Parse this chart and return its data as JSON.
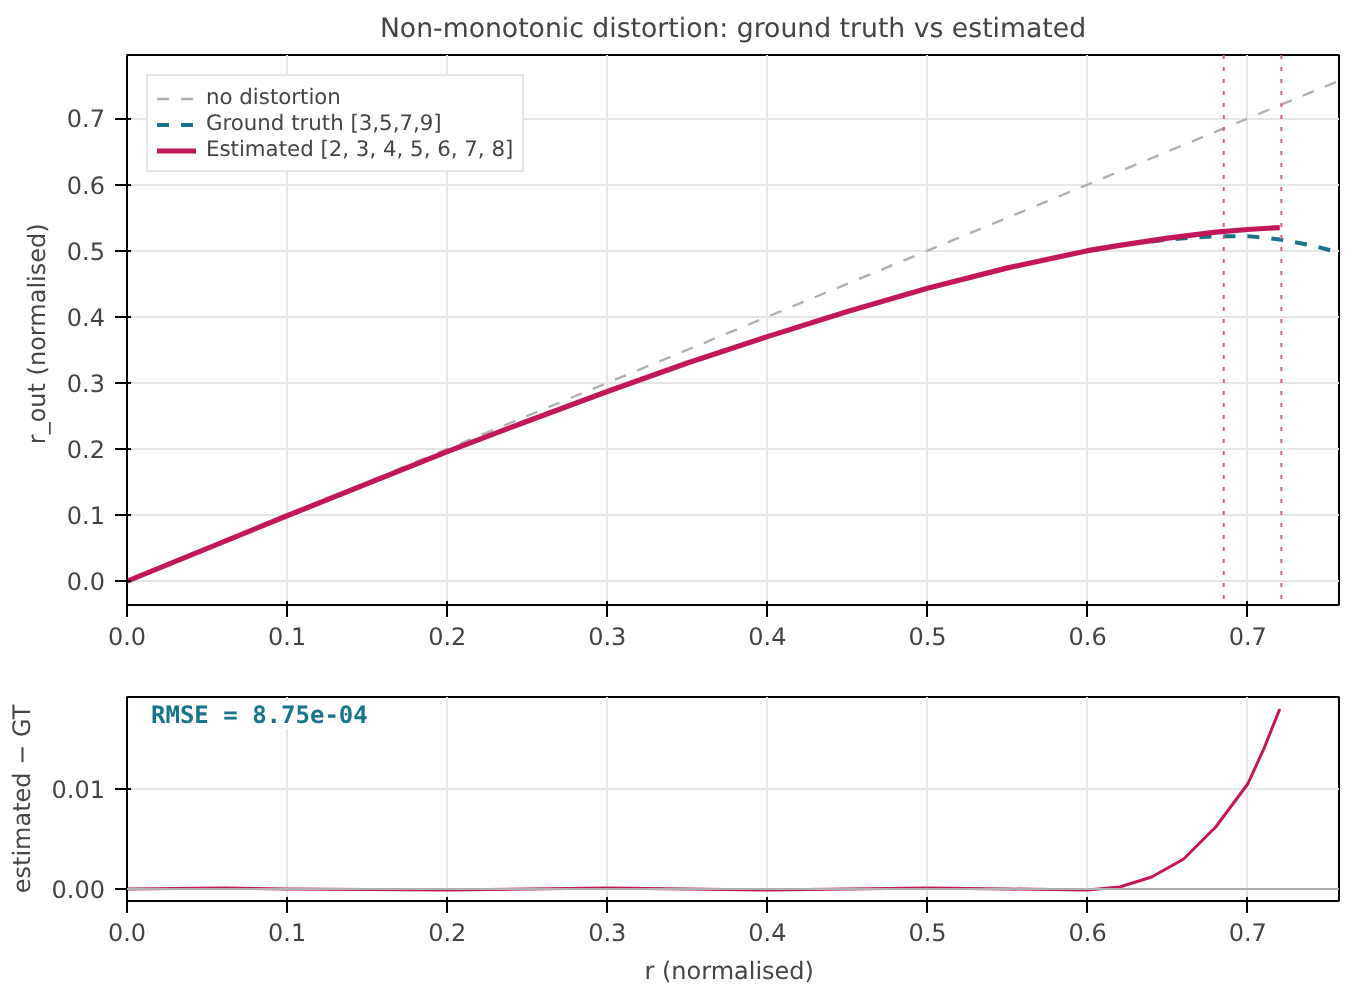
{
  "chart_data": [
    {
      "type": "line",
      "title": "Non-monotonic distortion: ground truth vs estimated",
      "ylabel": "r_out  (normalised)",
      "xlim": [
        0,
        0.757
      ],
      "ylim": [
        -0.036,
        0.796
      ],
      "xticks": [
        {
          "value": 0,
          "label": "0.0"
        },
        0.1,
        0.2,
        0.3,
        0.4,
        0.5,
        0.6,
        0.7
      ],
      "yticks": [
        {
          "value": 0,
          "label": "0.0"
        },
        0.1,
        0.2,
        0.3,
        0.4,
        0.5,
        0.6,
        0.7
      ],
      "grid": true,
      "legend": "top left",
      "series": [
        {
          "name": "no distortion",
          "color": "#b0b0b0",
          "line_style": "dashed",
          "x": [
            0,
            0.757
          ],
          "values": [
            0,
            0.757
          ]
        },
        {
          "name": "Ground truth [3,5,7,9]",
          "color": "#17748a",
          "line_style": "dashed",
          "x": [
            0.64,
            0.65,
            0.68,
            0.7,
            0.72,
            0.74,
            0.757
          ],
          "values": [
            0.514,
            0.517,
            0.522,
            0.522,
            0.517,
            0.508,
            0.497
          ]
        },
        {
          "name": "Estimated [2, 3, 4, 5, 6, 7, 8]",
          "color": "#c2185b",
          "line_style": "solid",
          "x": [
            0,
            0.1,
            0.2,
            0.25,
            0.3,
            0.35,
            0.4,
            0.45,
            0.5,
            0.55,
            0.6,
            0.62,
            0.65,
            0.68,
            0.7,
            0.72
          ],
          "values": [
            0,
            0.099,
            0.196,
            0.242,
            0.287,
            0.33,
            0.37,
            0.408,
            0.443,
            0.474,
            0.5,
            0.508,
            0.519,
            0.528,
            0.532,
            0.535
          ]
        }
      ],
      "ref_lines": [
        {
          "axis": "x",
          "value": 0.685,
          "color": "#e0607a",
          "line_style": "dotted"
        },
        {
          "axis": "x",
          "value": 0.721,
          "color": "#e0607a",
          "line_style": "dotted"
        }
      ]
    },
    {
      "type": "line",
      "xlabel": "r  (normalised)",
      "ylabel": "estimated − GT",
      "xlim": [
        0,
        0.757
      ],
      "ylim": [
        -0.0012,
        0.0192
      ],
      "xticks": [
        {
          "value": 0,
          "label": "0.0"
        },
        0.1,
        0.2,
        0.3,
        0.4,
        0.5,
        0.6,
        0.7
      ],
      "yticks": [
        {
          "value": 0,
          "label": "0.00"
        },
        0.01
      ],
      "grid": true,
      "annotations": [
        "RMSE = 8.75e-04"
      ],
      "series": [
        {
          "color": "#c2185b",
          "line_style": "solid",
          "x": [
            0,
            0.06,
            0.1,
            0.2,
            0.3,
            0.4,
            0.5,
            0.55,
            0.6,
            0.62,
            0.64,
            0.66,
            0.68,
            0.7,
            0.71,
            0.72
          ],
          "values": [
            0,
            0.0001,
            0,
            -0.0001,
            0.0001,
            -0.0001,
            0.0001,
            0,
            -0.0001,
            0.0002,
            0.0012,
            0.003,
            0.0062,
            0.0105,
            0.014,
            0.018
          ]
        }
      ],
      "ref_lines": [
        {
          "axis": "y",
          "value": 0,
          "color": "#b0b0b0",
          "line_style": "solid"
        }
      ]
    }
  ]
}
